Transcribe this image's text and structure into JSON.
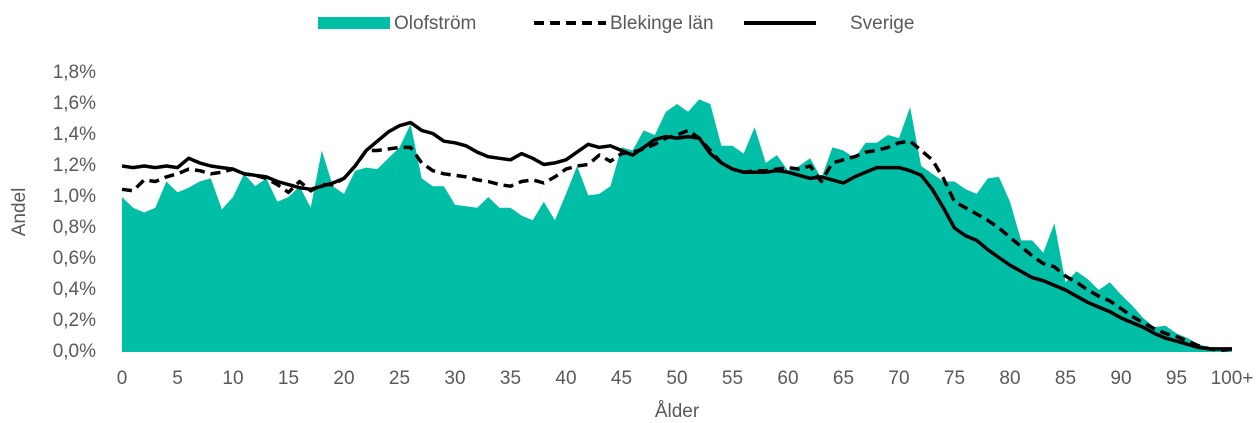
{
  "chart_data": {
    "type": "line",
    "categories": [
      "0",
      null,
      null,
      null,
      null,
      "5",
      null,
      null,
      null,
      null,
      "10",
      null,
      null,
      null,
      null,
      "15",
      null,
      null,
      null,
      null,
      "20",
      null,
      null,
      null,
      null,
      "25",
      null,
      null,
      null,
      null,
      "30",
      null,
      null,
      null,
      null,
      "35",
      null,
      null,
      null,
      null,
      "40",
      null,
      null,
      null,
      null,
      "45",
      null,
      null,
      null,
      null,
      "50",
      null,
      null,
      null,
      null,
      "55",
      null,
      null,
      null,
      null,
      "60",
      null,
      null,
      null,
      null,
      "65",
      null,
      null,
      null,
      null,
      "70",
      null,
      null,
      null,
      null,
      "75",
      null,
      null,
      null,
      null,
      "80",
      null,
      null,
      null,
      null,
      "85",
      null,
      null,
      null,
      null,
      "90",
      null,
      null,
      null,
      null,
      "95",
      null,
      null,
      null,
      null,
      "100+"
    ],
    "x_label": "Ålder",
    "y_label": "Andel",
    "ylim": [
      0,
      1.8
    ],
    "yticks": [
      {
        "value": 0,
        "label": "0,0%"
      },
      {
        "value": 0.2,
        "label": "0,2%"
      },
      {
        "value": 0.4,
        "label": "0,4%"
      },
      {
        "value": 0.6,
        "label": "0,6%"
      },
      {
        "value": 0.8,
        "label": "0,8%"
      },
      {
        "value": 1.0,
        "label": "1,0%"
      },
      {
        "value": 1.2,
        "label": "1,2%"
      },
      {
        "value": 1.4,
        "label": "1,4%"
      },
      {
        "value": 1.6,
        "label": "1,6%"
      },
      {
        "value": 1.8,
        "label": "1,8%"
      }
    ],
    "legend": "top",
    "series": [
      {
        "name": "Olofström",
        "color": "#00bfa6",
        "style": "area",
        "values": [
          1.0,
          0.93,
          0.9,
          0.93,
          1.1,
          1.03,
          1.06,
          1.1,
          1.12,
          0.92,
          1.0,
          1.15,
          1.07,
          1.12,
          0.97,
          1.0,
          1.07,
          0.93,
          1.3,
          1.07,
          1.02,
          1.17,
          1.19,
          1.18,
          1.25,
          1.32,
          1.47,
          1.12,
          1.07,
          1.07,
          0.95,
          0.94,
          0.93,
          1.0,
          0.93,
          0.93,
          0.88,
          0.85,
          0.97,
          0.85,
          1.02,
          1.2,
          1.01,
          1.02,
          1.07,
          1.32,
          1.3,
          1.43,
          1.4,
          1.55,
          1.6,
          1.55,
          1.63,
          1.6,
          1.33,
          1.33,
          1.28,
          1.45,
          1.22,
          1.27,
          1.17,
          1.2,
          1.25,
          1.12,
          1.32,
          1.3,
          1.25,
          1.35,
          1.35,
          1.4,
          1.38,
          1.58,
          1.2,
          1.15,
          1.1,
          1.1,
          1.05,
          1.02,
          1.12,
          1.13,
          0.97,
          0.72,
          0.72,
          0.64,
          0.83,
          0.45,
          0.52,
          0.47,
          0.4,
          0.45,
          0.37,
          0.3,
          0.22,
          0.16,
          0.17,
          0.12,
          0.09,
          0.05,
          0.03,
          0.02,
          0.02
        ]
      },
      {
        "name": "Blekinge län",
        "color": "#000000",
        "style": "dashed",
        "values": [
          1.05,
          1.04,
          1.11,
          1.1,
          1.13,
          1.15,
          1.18,
          1.17,
          1.15,
          1.16,
          1.18,
          1.15,
          1.14,
          1.12,
          1.08,
          1.03,
          1.1,
          1.04,
          1.08,
          1.08,
          1.12,
          1.2,
          1.3,
          1.3,
          1.31,
          1.32,
          1.32,
          1.22,
          1.17,
          1.15,
          1.14,
          1.13,
          1.11,
          1.1,
          1.08,
          1.07,
          1.1,
          1.11,
          1.09,
          1.13,
          1.18,
          1.2,
          1.21,
          1.27,
          1.23,
          1.28,
          1.29,
          1.31,
          1.34,
          1.38,
          1.4,
          1.43,
          1.38,
          1.3,
          1.22,
          1.18,
          1.16,
          1.17,
          1.17,
          1.18,
          1.19,
          1.18,
          1.2,
          1.1,
          1.22,
          1.24,
          1.26,
          1.29,
          1.3,
          1.32,
          1.35,
          1.36,
          1.3,
          1.24,
          1.12,
          0.97,
          0.93,
          0.89,
          0.85,
          0.8,
          0.74,
          0.68,
          0.62,
          0.57,
          0.55,
          0.49,
          0.45,
          0.4,
          0.36,
          0.33,
          0.28,
          0.23,
          0.19,
          0.15,
          0.12,
          0.1,
          0.07,
          0.04,
          0.02,
          0.01,
          0.02
        ]
      },
      {
        "name": "Sverige",
        "color": "#000000",
        "style": "solid",
        "values": [
          1.2,
          1.19,
          1.2,
          1.19,
          1.2,
          1.19,
          1.25,
          1.22,
          1.2,
          1.19,
          1.18,
          1.15,
          1.14,
          1.13,
          1.1,
          1.08,
          1.06,
          1.05,
          1.07,
          1.09,
          1.12,
          1.2,
          1.3,
          1.36,
          1.42,
          1.46,
          1.48,
          1.43,
          1.41,
          1.36,
          1.35,
          1.33,
          1.29,
          1.26,
          1.25,
          1.24,
          1.28,
          1.25,
          1.21,
          1.22,
          1.24,
          1.29,
          1.34,
          1.32,
          1.33,
          1.3,
          1.27,
          1.32,
          1.37,
          1.39,
          1.38,
          1.39,
          1.38,
          1.28,
          1.22,
          1.18,
          1.16,
          1.16,
          1.16,
          1.17,
          1.16,
          1.14,
          1.12,
          1.13,
          1.11,
          1.09,
          1.13,
          1.16,
          1.19,
          1.19,
          1.19,
          1.17,
          1.14,
          1.05,
          0.93,
          0.8,
          0.75,
          0.72,
          0.66,
          0.61,
          0.56,
          0.52,
          0.48,
          0.46,
          0.43,
          0.4,
          0.36,
          0.32,
          0.29,
          0.26,
          0.22,
          0.19,
          0.16,
          0.12,
          0.09,
          0.07,
          0.05,
          0.03,
          0.02,
          0.02,
          0.02
        ]
      }
    ]
  }
}
